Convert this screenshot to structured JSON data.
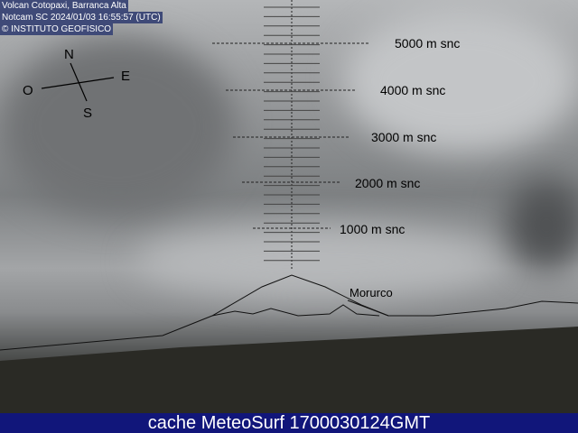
{
  "overlay": {
    "line1": "Volcan Cotopaxi, Barranca Alta",
    "line2": "Notcam SC 2024/01/03 16:55:57 (UTC)",
    "line3": "© INSTITUTO GEOFISICO"
  },
  "compass": {
    "north": "N",
    "south": "S",
    "east": "E",
    "west": "O"
  },
  "altitudes": [
    "5000 m snc",
    "4000 m snc",
    "3000 m snc",
    "2000 m snc",
    "1000 m snc"
  ],
  "peak_label": "Morurco",
  "banner": "cache MeteoSurf 1700030124GMT"
}
